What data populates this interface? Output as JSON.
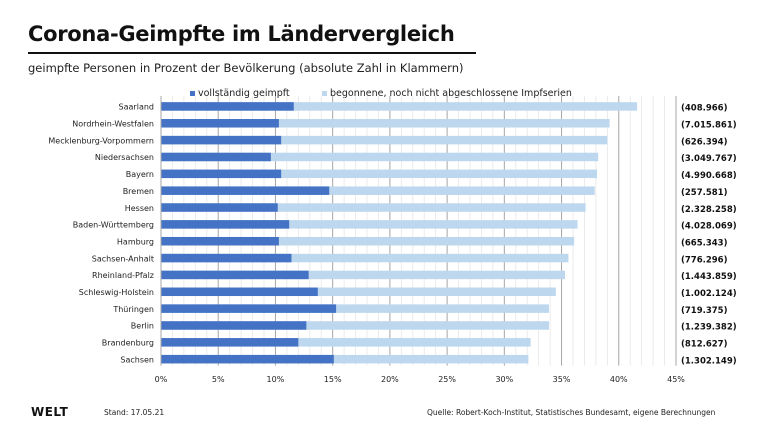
{
  "header": {
    "title": "Corona-Geimpfte im Ländervergleich",
    "subtitle": "geimpfte Personen in Prozent der Bevölkerung (absolute Zahl in Klammern)"
  },
  "footer": {
    "logo": "WELT",
    "stand": "Stand:  17.05.21",
    "source": "Quelle: Robert-Koch-Institut, Statistisches Bundesamt, eigene Berechnungen"
  },
  "colors": {
    "fully_vaccinated": "#4472c4",
    "partially_vaccinated": "#bdd7ee",
    "grid_major": "#a6a6a6",
    "grid_minor": "#e6e6e6"
  },
  "chart_data": {
    "type": "bar",
    "orientation": "horizontal",
    "stacked": false,
    "title": "Corona-Geimpfte im Ländervergleich",
    "subtitle": "geimpfte Personen in Prozent der Bevölkerung (absolute Zahl in Klammern)",
    "xlabel": "",
    "ylabel": "",
    "xlim": [
      0,
      45
    ],
    "xticks": [
      0,
      5,
      10,
      15,
      20,
      25,
      30,
      35,
      40,
      45
    ],
    "xtick_labels": [
      "0%",
      "5%",
      "10%",
      "15%",
      "20%",
      "25%",
      "30%",
      "35%",
      "40%",
      "45%"
    ],
    "grid": true,
    "legend_position": "top",
    "categories": [
      "Saarland",
      "Nordrhein-Westfalen",
      "Mecklenburg-Vorpommern",
      "Niedersachsen",
      "Bayern",
      "Bremen",
      "Hessen",
      "Baden-Württemberg",
      "Hamburg",
      "Sachsen-Anhalt",
      "Rheinland-Pfalz",
      "Schleswig-Holstein",
      "Thüringen",
      "Berlin",
      "Brandenburg",
      "Sachsen"
    ],
    "series": [
      {
        "name": "vollständig geimpft",
        "values": [
          11.6,
          10.3,
          10.5,
          9.6,
          10.5,
          14.7,
          10.2,
          11.2,
          10.3,
          11.4,
          12.9,
          13.7,
          15.3,
          12.7,
          12.0,
          15.1
        ]
      },
      {
        "name": "begonnene, noch nicht abgeschlossene Impfserien",
        "values": [
          41.6,
          39.2,
          39.0,
          38.2,
          38.1,
          37.9,
          37.1,
          36.4,
          36.1,
          35.6,
          35.3,
          34.5,
          33.9,
          33.9,
          32.3,
          32.1
        ]
      }
    ],
    "annotations": [
      "(408.966)",
      "(7.015.861)",
      "(626.394)",
      "(3.049.767)",
      "(4.990.668)",
      "(257.581)",
      "(2.328.258)",
      "(4.028.069)",
      "(665.343)",
      "(776.296)",
      "(1.443.859)",
      "(1.002.124)",
      "(719.375)",
      "(1.239.382)",
      "(812.627)",
      "(1.302.149)"
    ]
  }
}
